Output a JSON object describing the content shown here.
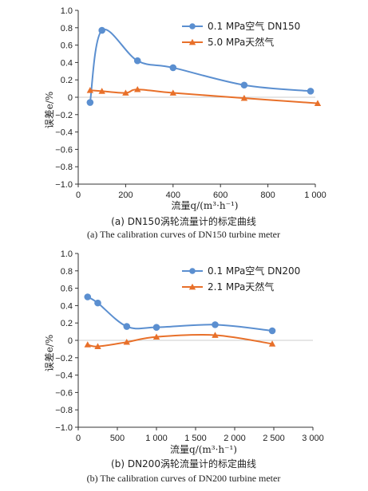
{
  "chart_data": [
    {
      "type": "line",
      "xlabel": "流量q/(m³·h⁻¹)",
      "ylabel": "误差e/%",
      "xlim": [
        0,
        1000
      ],
      "ylim": [
        -1.0,
        1.0
      ],
      "xticks": [
        0,
        200,
        400,
        600,
        800,
        1000
      ],
      "yticks": [
        1.0,
        0.8,
        0.6,
        0.4,
        0.2,
        0,
        -0.2,
        -0.4,
        -0.6,
        -0.8,
        -1.0
      ],
      "xtick_labels": [
        "0",
        "200",
        "400",
        "600",
        "800",
        "1 000"
      ],
      "ytick_labels": [
        "1.0",
        "0.8",
        "0.6",
        "0.4",
        "0.2",
        "0",
        "−0.2",
        "−0.4",
        "−0.6",
        "−0.8",
        "−1.0"
      ],
      "grid": false,
      "legend_position": "top-right",
      "caption_cn": "(a) DN150涡轮流量计的标定曲线",
      "caption_en": "(a) The calibration curves of DN150 turbine meter",
      "series": [
        {
          "name": "0.1 MPa空气  DN150",
          "color": "#5b8fd0",
          "marker": "circle",
          "x": [
            50,
            100,
            250,
            400,
            700,
            980
          ],
          "y": [
            -0.06,
            0.77,
            0.42,
            0.34,
            0.14,
            0.07
          ]
        },
        {
          "name": "5.0 MPa天然气",
          "color": "#e8702a",
          "marker": "triangle",
          "x": [
            50,
            100,
            200,
            250,
            400,
            700,
            1010
          ],
          "y": [
            0.08,
            0.07,
            0.05,
            0.09,
            0.05,
            -0.01,
            -0.07
          ]
        }
      ]
    },
    {
      "type": "line",
      "xlabel": "流量q/(m³·h⁻¹)",
      "ylabel": "误差e/%",
      "xlim": [
        0,
        3000
      ],
      "ylim": [
        -1.0,
        1.0
      ],
      "xticks": [
        0,
        500,
        1000,
        1500,
        2000,
        2500,
        3000
      ],
      "yticks": [
        1.0,
        0.8,
        0.6,
        0.4,
        0.2,
        0,
        -0.2,
        -0.4,
        -0.6,
        -0.8,
        -1.0
      ],
      "xtick_labels": [
        "0",
        "500",
        "1 000",
        "1 500",
        "2 000",
        "2 500",
        "3 000"
      ],
      "ytick_labels": [
        "1.0",
        "0.8",
        "0.6",
        "0.4",
        "0.2",
        "0",
        "−0.2",
        "−0.4",
        "−0.6",
        "−0.8",
        "−1.0"
      ],
      "grid": false,
      "legend_position": "top-right",
      "caption_cn": "(b) DN200涡轮流量计的标定曲线",
      "caption_en": "(b) The calibration curves of DN200 turbine meter",
      "series": [
        {
          "name": "0.1 MPa空气  DN200",
          "color": "#5b8fd0",
          "marker": "circle",
          "x": [
            120,
            250,
            620,
            1000,
            1750,
            2480
          ],
          "y": [
            0.5,
            0.43,
            0.16,
            0.15,
            0.18,
            0.11
          ]
        },
        {
          "name": "2.1 MPa天然气",
          "color": "#e8702a",
          "marker": "triangle",
          "x": [
            120,
            250,
            620,
            1000,
            1750,
            2480
          ],
          "y": [
            -0.05,
            -0.07,
            -0.02,
            0.04,
            0.06,
            -0.04
          ]
        }
      ]
    }
  ]
}
